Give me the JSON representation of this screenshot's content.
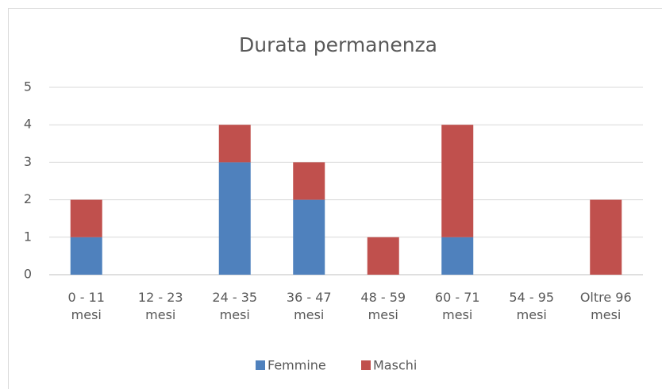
{
  "chart_data": {
    "type": "stacked_bar",
    "title": "Durata permanenza",
    "categories": [
      "0 - 11 mesi",
      "12 - 23 mesi",
      "24 - 35 mesi",
      "36 - 47 mesi",
      "48 - 59 mesi",
      "60 - 71 mesi",
      "54 - 95 mesi",
      "Oltre 96 mesi"
    ],
    "series": [
      {
        "name": "Femmine",
        "color": "#4f81bd",
        "values": [
          1,
          0,
          3,
          2,
          0,
          1,
          0,
          0
        ]
      },
      {
        "name": "Maschi",
        "color": "#c0504d",
        "values": [
          1,
          0,
          1,
          1,
          1,
          3,
          0,
          2
        ]
      }
    ],
    "ylim": [
      0,
      5
    ],
    "yticks": [
      0,
      1,
      2,
      3,
      4,
      5
    ],
    "grid": true,
    "legend": "bottom"
  }
}
